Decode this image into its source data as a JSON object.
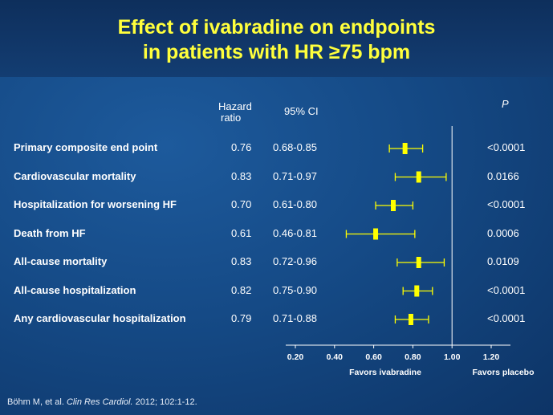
{
  "title_line1": "Effect of ivabradine on endpoints",
  "title_line2": "in patients with HR ≥75 bpm",
  "headers": {
    "hazard_line1": "Hazard",
    "hazard_line2": "ratio",
    "ci": "95% CI",
    "p": "P"
  },
  "chart_data": {
    "type": "forest",
    "rows": [
      {
        "label": "Primary composite end point",
        "hr": "0.76",
        "ci": "0.68-0.85",
        "p": "<0.0001",
        "hr_value": 0.76,
        "lo": 0.68,
        "hi": 0.85
      },
      {
        "label": "Cardiovascular mortality",
        "hr": "0.83",
        "ci": "0.71-0.97",
        "p": "0.0166",
        "hr_value": 0.83,
        "lo": 0.71,
        "hi": 0.97
      },
      {
        "label": "Hospitalization  for worsening HF",
        "hr": "0.70",
        "ci": "0.61-0.80",
        "p": "<0.0001",
        "hr_value": 0.7,
        "lo": 0.61,
        "hi": 0.8
      },
      {
        "label": "Death from HF",
        "hr": "0.61",
        "ci": "0.46-0.81",
        "p": "0.0006",
        "hr_value": 0.61,
        "lo": 0.46,
        "hi": 0.81
      },
      {
        "label": "All-cause mortality",
        "hr": "0.83",
        "ci": "0.72-0.96",
        "p": "0.0109",
        "hr_value": 0.83,
        "lo": 0.72,
        "hi": 0.96
      },
      {
        "label": "All-cause hospitalization",
        "hr": "0.82",
        "ci": "0.75-0.90",
        "p": "<0.0001",
        "hr_value": 0.82,
        "lo": 0.75,
        "hi": 0.9
      },
      {
        "label": "Any cardiovascular hospitalization",
        "hr": "0.79",
        "ci": "0.71-0.88",
        "p": "<0.0001",
        "hr_value": 0.79,
        "lo": 0.71,
        "hi": 0.88
      }
    ],
    "x_ticks": [
      "0.20",
      "0.40",
      "0.60",
      "0.80",
      "1.00",
      "1.20"
    ],
    "x_tick_values": [
      0.2,
      0.4,
      0.6,
      0.8,
      1.0,
      1.2
    ],
    "reference_line": 1.0,
    "favors_left": "Favors ivabradine",
    "favors_right": "Favors placebo",
    "marker_color": "#ffff00"
  },
  "citation_prefix": "Böhm M, et al. ",
  "citation_journal": "Clin Res Cardiol.",
  "citation_suffix": " 2012; 102:1-12."
}
